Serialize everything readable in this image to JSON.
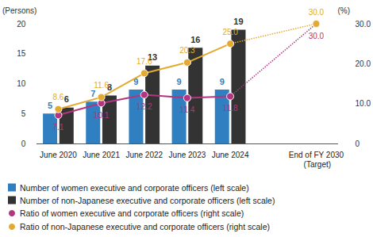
{
  "chart_data": {
    "type": "bar",
    "y_label": "(Persons)",
    "y2_label": "(%)",
    "categories": [
      "June 2020",
      "June 2021",
      "June 2022",
      "June 2023",
      "June 2024",
      null,
      "End of FY 2030 (Target)"
    ],
    "ylim": [
      0,
      20
    ],
    "yticks": [
      0,
      5,
      10,
      15,
      20
    ],
    "y2lim": [
      0,
      30
    ],
    "y2ticks": [
      0,
      {
        "value": 10,
        "label": "10.0"
      },
      {
        "value": 20,
        "label": "20.0"
      },
      {
        "value": 30,
        "label": "30.0"
      }
    ],
    "grid": false,
    "legend": "bottom",
    "data_labels": true,
    "series": [
      {
        "name": "Number of women executive and corporate officers (left scale)",
        "type": "bar",
        "color": "#2f7fc1",
        "values": [
          5,
          7,
          9,
          9,
          9,
          null,
          null
        ]
      },
      {
        "name": "Number of non-Japanese executive and corporate officers (left scale)",
        "type": "bar",
        "color": "#333333",
        "values": [
          6,
          8,
          13,
          16,
          19,
          null,
          null
        ]
      },
      {
        "name": "Ratio of women executive and corporate officers (right scale)",
        "type": "line",
        "axis": "y2",
        "color": "#b2357f",
        "marker": "circle",
        "line_style": "solid",
        "values": [
          7.1,
          10.1,
          12.2,
          11.4,
          11.8,
          null,
          30.0
        ],
        "value_labels": [
          "7.1",
          "10.1",
          "12.2",
          "11.4",
          "11.8",
          null,
          "30.0"
        ]
      },
      {
        "name": "Ratio of non-Japanese executive and corporate officers (right scale)",
        "type": "line",
        "axis": "y2",
        "color": "#e3aa2f",
        "marker": "circle",
        "line_style": "solid",
        "values": [
          8.6,
          11.6,
          17.6,
          20.3,
          25.0,
          null,
          30.0
        ],
        "value_labels": [
          "8.6",
          "11.6",
          "17.6",
          "20.3",
          "25.0",
          null,
          "30.0"
        ]
      }
    ]
  }
}
